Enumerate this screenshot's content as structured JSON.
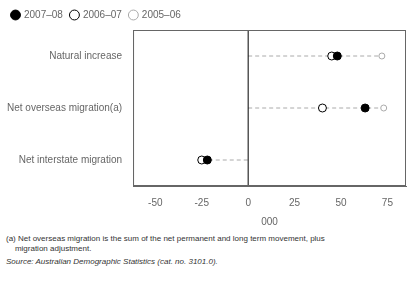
{
  "chart_data": {
    "type": "scatter",
    "orientation": "horizontal",
    "categories": [
      "Natural increase",
      "Net overseas migration(a)",
      "Net interstate migration"
    ],
    "series": [
      {
        "name": "2007–08",
        "color": "#000000",
        "marker": "filled_circle",
        "values": [
          48,
          63,
          -22
        ]
      },
      {
        "name": "2006–07",
        "color": "#000000",
        "marker": "open_circle",
        "values": [
          45,
          40,
          -25
        ]
      },
      {
        "name": "2005–06",
        "color": "#aaaaaa",
        "marker": "open_circle",
        "values": [
          72,
          73,
          -25
        ]
      }
    ],
    "xlim": [
      -62,
      85
    ],
    "xticks": [
      -50,
      -25,
      0,
      25,
      50,
      75
    ],
    "xlabel": "000",
    "annotations": [
      "(a) Net overseas migration is the sum of the net permanent and long term movement, plus",
      "    migration adjustment.",
      "Source: Australian Demographic Statistics (cat. no. 3101.0)."
    ],
    "legend": "upper left",
    "grid": false
  }
}
